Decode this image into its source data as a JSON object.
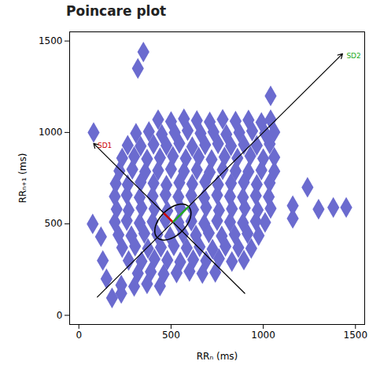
{
  "chart_data": {
    "type": "scatter",
    "title": "Poincare plot",
    "x_label": "RRₙ (ms)",
    "y_label": "RRₙ₊₁ (ms)",
    "color": "#6b6bcf",
    "marker": "diamond",
    "xlim": [
      -50,
      1550
    ],
    "ylim": [
      -50,
      1550
    ],
    "xticks": [
      0,
      500,
      1000,
      1500
    ],
    "yticks": [
      0,
      500,
      1000,
      1500
    ],
    "grid": false,
    "x": [
      430,
      500,
      570,
      640,
      710,
      780,
      850,
      920,
      990,
      1040,
      310,
      380,
      450,
      520,
      590,
      660,
      730,
      800,
      870,
      940,
      1010,
      1060,
      265,
      335,
      405,
      475,
      545,
      615,
      685,
      755,
      825,
      895,
      965,
      1035,
      235,
      300,
      370,
      440,
      510,
      580,
      650,
      720,
      790,
      860,
      930,
      1000,
      1060,
      220,
      290,
      360,
      430,
      500,
      570,
      640,
      710,
      780,
      850,
      920,
      990,
      1060,
      200,
      265,
      335,
      405,
      475,
      545,
      615,
      685,
      755,
      825,
      895,
      965,
      1035,
      195,
      260,
      330,
      400,
      470,
      540,
      610,
      680,
      750,
      820,
      890,
      960,
      1030,
      205,
      270,
      340,
      410,
      480,
      550,
      620,
      690,
      760,
      830,
      900,
      970,
      1040,
      195,
      260,
      330,
      400,
      470,
      540,
      610,
      680,
      750,
      820,
      890,
      960,
      1010,
      215,
      285,
      355,
      425,
      495,
      565,
      635,
      705,
      775,
      845,
      915,
      975,
      235,
      305,
      375,
      445,
      515,
      585,
      655,
      725,
      795,
      865,
      935,
      270,
      340,
      410,
      480,
      550,
      620,
      690,
      760,
      830,
      895,
      320,
      390,
      460,
      530,
      600,
      670,
      740,
      230,
      300,
      370,
      440,
      350,
      320,
      80,
      75,
      180,
      130,
      150,
      230,
      120,
      1040,
      1160,
      1240,
      1300,
      1380,
      1450,
      1160
    ],
    "values": [
      1070,
      1060,
      1075,
      1065,
      1058,
      1072,
      1062,
      1068,
      1055,
      1070,
      995,
      1005,
      990,
      1000,
      1010,
      995,
      1003,
      990,
      1000,
      1008,
      995,
      1002,
      930,
      925,
      935,
      928,
      940,
      922,
      932,
      938,
      926,
      934,
      929,
      937,
      860,
      868,
      855,
      862,
      870,
      858,
      865,
      852,
      866,
      860,
      872,
      857,
      864,
      790,
      798,
      785,
      792,
      800,
      788,
      795,
      782,
      796,
      790,
      786,
      794,
      788,
      720,
      715,
      728,
      722,
      712,
      725,
      718,
      730,
      714,
      722,
      727,
      716,
      724,
      650,
      658,
      645,
      652,
      660,
      648,
      655,
      642,
      657,
      650,
      646,
      654,
      648,
      580,
      575,
      588,
      582,
      572,
      585,
      578,
      590,
      574,
      582,
      587,
      576,
      584,
      510,
      518,
      505,
      512,
      520,
      508,
      515,
      502,
      517,
      510,
      506,
      514,
      508,
      440,
      435,
      448,
      442,
      432,
      445,
      438,
      450,
      434,
      442,
      447,
      436,
      370,
      378,
      365,
      372,
      380,
      368,
      375,
      362,
      377,
      370,
      366,
      300,
      295,
      308,
      302,
      292,
      305,
      298,
      310,
      294,
      302,
      230,
      238,
      225,
      232,
      240,
      228,
      235,
      165,
      158,
      172,
      160,
      1440,
      1350,
      1000,
      500,
      95,
      300,
      200,
      120,
      430,
      1200,
      600,
      700,
      580,
      590,
      590,
      530
    ],
    "ellipse": {
      "center": [
        510,
        510
      ],
      "sd1": 70,
      "sd2": 120
    },
    "annotations": [
      {
        "text": "SD1",
        "color": "#cc0000",
        "from": [
          900,
          120
        ],
        "to": [
          80,
          940
        ]
      },
      {
        "text": "SD2",
        "color": "#22aa22",
        "from": [
          100,
          100
        ],
        "to": [
          1430,
          1430
        ]
      }
    ]
  }
}
